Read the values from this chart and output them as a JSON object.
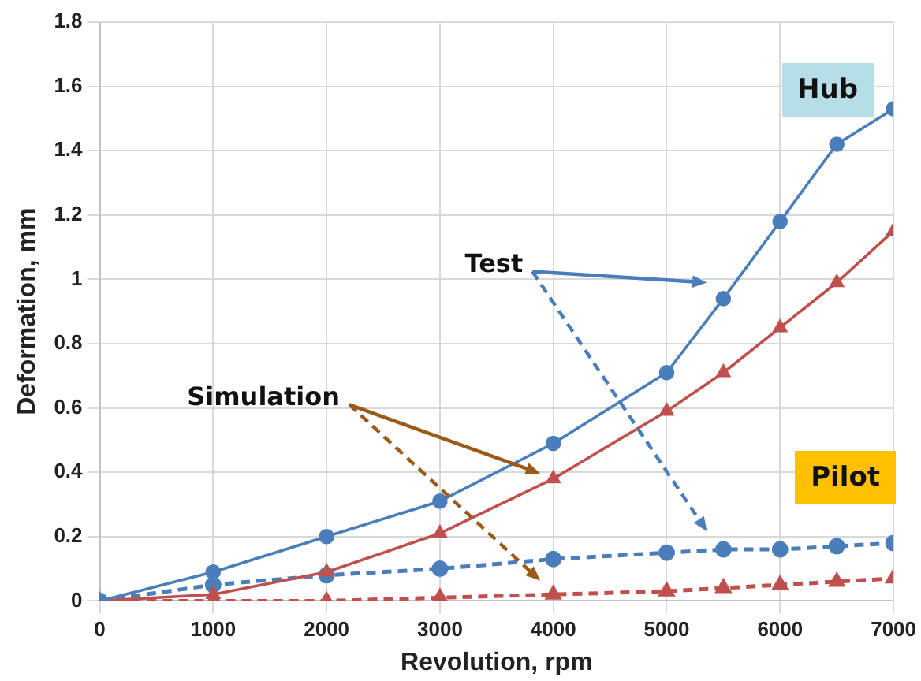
{
  "chart_data": {
    "type": "line",
    "xlabel": "Revolution, rpm",
    "ylabel": "Deformation, mm",
    "xlim": [
      0,
      7000
    ],
    "xticks": [
      0,
      1000,
      2000,
      3000,
      4000,
      5000,
      6000,
      7000
    ],
    "ylim": [
      0,
      1.8
    ],
    "yticks": [
      0,
      0.2,
      0.4,
      0.6,
      0.8,
      1,
      1.2,
      1.4,
      1.6,
      1.8
    ],
    "grid": true,
    "legend": false,
    "x": [
      0,
      1000,
      2000,
      3000,
      4000,
      5000,
      5500,
      6000,
      6500,
      7000
    ],
    "series": [
      {
        "color": "#4a7ebb",
        "marker": "circle",
        "line_style": "solid",
        "values": [
          0,
          0.09,
          0.2,
          0.31,
          0.49,
          0.71,
          0.94,
          1.18,
          1.42,
          1.53
        ]
      },
      {
        "color": "#c0504d",
        "marker": "triangle",
        "line_style": "solid",
        "values": [
          0,
          0.02,
          0.09,
          0.21,
          0.38,
          0.59,
          0.71,
          0.85,
          0.99,
          1.15
        ]
      },
      {
        "color": "#4a7ebb",
        "marker": "circle",
        "line_style": "dashed",
        "values": [
          0,
          0.05,
          0.08,
          0.1,
          0.13,
          0.15,
          0.16,
          0.16,
          0.17,
          0.18
        ]
      },
      {
        "color": "#c0504d",
        "marker": "triangle",
        "line_style": "dashed",
        "values": [
          0,
          0,
          0,
          0.01,
          0.02,
          0.03,
          0.04,
          0.05,
          0.06,
          0.07
        ]
      }
    ],
    "annotations": [
      "Test",
      "Simulation",
      "Hub",
      "Pilot"
    ]
  }
}
